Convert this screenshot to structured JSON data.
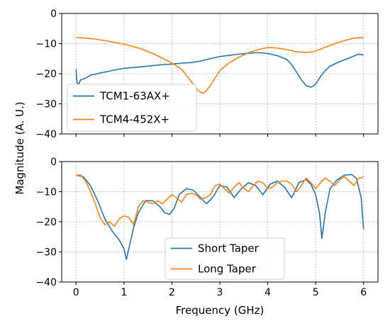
{
  "figure": {
    "xlabel": "Frequency (GHz)",
    "ylabel": "Magnitude (A. U.)"
  },
  "chart_data": [
    {
      "type": "line",
      "xlim": [
        -0.3,
        6.3
      ],
      "ylim": [
        -40,
        0
      ],
      "x_ticks": [
        0,
        1,
        2,
        3,
        4,
        5,
        6
      ],
      "y_ticks": [
        0,
        -10,
        -20,
        -30,
        -40
      ],
      "grid": true,
      "legend_position": "lower-left",
      "series": [
        {
          "name": "TCM1-63AX+",
          "color": "#1f77b4",
          "x": [
            0.0,
            0.02,
            0.05,
            0.1,
            0.2,
            0.3,
            0.5,
            0.8,
            1.0,
            1.3,
            1.6,
            1.8,
            2.0,
            2.2,
            2.4,
            2.6,
            2.8,
            3.0,
            3.2,
            3.4,
            3.6,
            3.8,
            4.0,
            4.2,
            4.4,
            4.5,
            4.6,
            4.7,
            4.8,
            4.9,
            5.0,
            5.1,
            5.2,
            5.3,
            5.5,
            5.7,
            5.9,
            6.0
          ],
          "y": [
            -18.5,
            -23.0,
            -23.5,
            -22.0,
            -21.5,
            -20.5,
            -19.8,
            -18.8,
            -18.2,
            -17.8,
            -17.3,
            -17.0,
            -16.8,
            -16.5,
            -16.3,
            -15.8,
            -15.0,
            -14.3,
            -13.9,
            -13.5,
            -13.2,
            -13.0,
            -13.3,
            -14.0,
            -15.3,
            -17.0,
            -19.5,
            -22.0,
            -24.0,
            -24.5,
            -23.5,
            -21.0,
            -19.0,
            -17.5,
            -16.0,
            -14.8,
            -13.5,
            -13.8
          ]
        },
        {
          "name": "TCM4-452X+",
          "color": "#ff7f0e",
          "x": [
            0.0,
            0.2,
            0.4,
            0.6,
            0.8,
            1.0,
            1.2,
            1.4,
            1.6,
            1.8,
            2.0,
            2.2,
            2.3,
            2.4,
            2.5,
            2.6,
            2.65,
            2.7,
            2.8,
            2.9,
            3.0,
            3.2,
            3.4,
            3.6,
            3.8,
            4.0,
            4.2,
            4.4,
            4.6,
            4.8,
            5.0,
            5.2,
            5.4,
            5.6,
            5.8,
            6.0
          ],
          "y": [
            -8.0,
            -8.2,
            -8.5,
            -9.0,
            -9.6,
            -10.2,
            -11.0,
            -12.0,
            -13.3,
            -14.8,
            -16.5,
            -18.5,
            -20.5,
            -22.5,
            -24.8,
            -26.2,
            -26.5,
            -26.0,
            -24.0,
            -21.5,
            -19.0,
            -16.3,
            -14.5,
            -13.0,
            -12.0,
            -11.3,
            -11.5,
            -12.0,
            -12.7,
            -13.0,
            -12.5,
            -11.2,
            -10.0,
            -9.0,
            -8.2,
            -8.0
          ]
        }
      ]
    },
    {
      "type": "line",
      "xlim": [
        -0.3,
        6.3
      ],
      "ylim": [
        -40,
        0
      ],
      "x_ticks": [
        0,
        1,
        2,
        3,
        4,
        5,
        6
      ],
      "x_tick_labels": [
        "0",
        "1",
        "2",
        "3",
        "4",
        "5",
        "6"
      ],
      "y_ticks": [
        0,
        -10,
        -20,
        -30,
        -40
      ],
      "grid": true,
      "legend_position": "lower-center",
      "series": [
        {
          "name": "Short Taper",
          "color": "#1f77b4",
          "x": [
            0.0,
            0.15,
            0.3,
            0.45,
            0.6,
            0.75,
            0.9,
            1.0,
            1.05,
            1.1,
            1.2,
            1.3,
            1.45,
            1.6,
            1.75,
            1.85,
            1.95,
            2.05,
            2.15,
            2.3,
            2.45,
            2.6,
            2.72,
            2.85,
            3.0,
            3.15,
            3.3,
            3.45,
            3.6,
            3.75,
            3.9,
            4.05,
            4.2,
            4.35,
            4.5,
            4.65,
            4.8,
            4.9,
            5.0,
            5.08,
            5.13,
            5.2,
            5.3,
            5.45,
            5.6,
            5.75,
            5.85,
            5.95,
            6.0
          ],
          "y": [
            -4.5,
            -5.0,
            -8.0,
            -13.0,
            -19.0,
            -23.0,
            -26.0,
            -29.0,
            -32.5,
            -29.0,
            -22.0,
            -17.0,
            -13.0,
            -13.0,
            -15.0,
            -17.0,
            -17.5,
            -15.5,
            -11.0,
            -9.0,
            -9.5,
            -12.0,
            -14.0,
            -12.0,
            -8.0,
            -8.5,
            -12.0,
            -9.0,
            -7.0,
            -8.0,
            -11.0,
            -7.5,
            -6.5,
            -8.5,
            -12.0,
            -7.0,
            -6.0,
            -7.5,
            -11.0,
            -17.0,
            -25.5,
            -17.0,
            -9.0,
            -6.0,
            -4.5,
            -4.3,
            -5.5,
            -12.0,
            -22.5
          ]
        },
        {
          "name": "Long Taper",
          "color": "#ff7f0e",
          "x": [
            0.0,
            0.1,
            0.2,
            0.3,
            0.4,
            0.5,
            0.6,
            0.7,
            0.8,
            0.9,
            1.0,
            1.1,
            1.2,
            1.3,
            1.4,
            1.5,
            1.6,
            1.7,
            1.8,
            1.9,
            2.0,
            2.1,
            2.2,
            2.3,
            2.4,
            2.5,
            2.6,
            2.7,
            2.8,
            2.9,
            3.0,
            3.1,
            3.2,
            3.3,
            3.4,
            3.5,
            3.6,
            3.7,
            3.8,
            3.9,
            4.0,
            4.1,
            4.2,
            4.3,
            4.4,
            4.5,
            4.6,
            4.7,
            4.8,
            4.9,
            5.0,
            5.1,
            5.2,
            5.3,
            5.4,
            5.5,
            5.6,
            5.7,
            5.8,
            5.9,
            6.0
          ],
          "y": [
            -4.5,
            -4.5,
            -6.5,
            -10.0,
            -14.0,
            -18.5,
            -21.0,
            -20.0,
            -21.5,
            -19.0,
            -18.0,
            -18.5,
            -21.0,
            -15.0,
            -13.0,
            -13.5,
            -14.0,
            -13.0,
            -14.0,
            -12.5,
            -11.0,
            -12.0,
            -13.5,
            -11.0,
            -10.5,
            -11.0,
            -12.5,
            -12.0,
            -11.0,
            -8.0,
            -7.5,
            -9.0,
            -10.5,
            -8.5,
            -7.0,
            -9.0,
            -10.0,
            -8.0,
            -6.5,
            -7.0,
            -9.0,
            -8.5,
            -7.0,
            -6.5,
            -6.5,
            -7.5,
            -10.0,
            -8.0,
            -5.5,
            -7.0,
            -9.0,
            -7.0,
            -5.5,
            -6.5,
            -8.0,
            -6.0,
            -5.0,
            -6.5,
            -8.0,
            -5.5,
            -5.2
          ]
        }
      ]
    }
  ]
}
